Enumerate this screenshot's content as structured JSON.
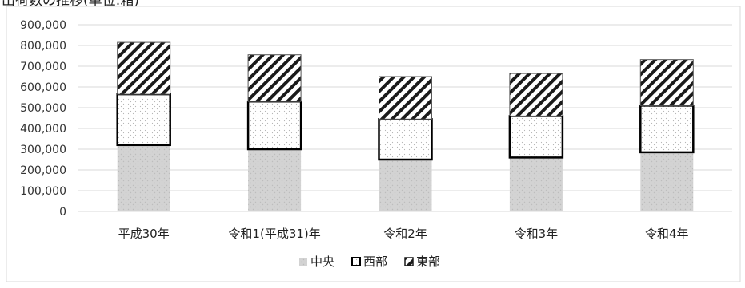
{
  "chart_data": {
    "type": "bar",
    "stacked": true,
    "title_partial": "出荷数の推移(単位:箱)",
    "categories": [
      "平成30年",
      "令和1(平成31)年",
      "令和2年",
      "令和3年",
      "令和4年"
    ],
    "series": [
      {
        "name": "中央",
        "values": [
          320000,
          300000,
          250000,
          260000,
          285000
        ],
        "fill": "#d4d4d4",
        "pattern": "dots-light"
      },
      {
        "name": "西部",
        "values": [
          245000,
          230000,
          195000,
          200000,
          225000
        ],
        "fill": "#ffffff",
        "pattern": "dots",
        "stroke": "#000000"
      },
      {
        "name": "東部",
        "values": [
          250000,
          225000,
          205000,
          205000,
          222000
        ],
        "fill": "#ffffff",
        "pattern": "diagonal-stripes"
      }
    ],
    "ylim": [
      0,
      900000
    ],
    "yticks": [
      "900,000",
      "800,000",
      "700,000",
      "600,000",
      "500,000",
      "400,000",
      "300,000",
      "200,000",
      "100,000",
      "0"
    ],
    "grid": true,
    "legend_position": "bottom"
  }
}
